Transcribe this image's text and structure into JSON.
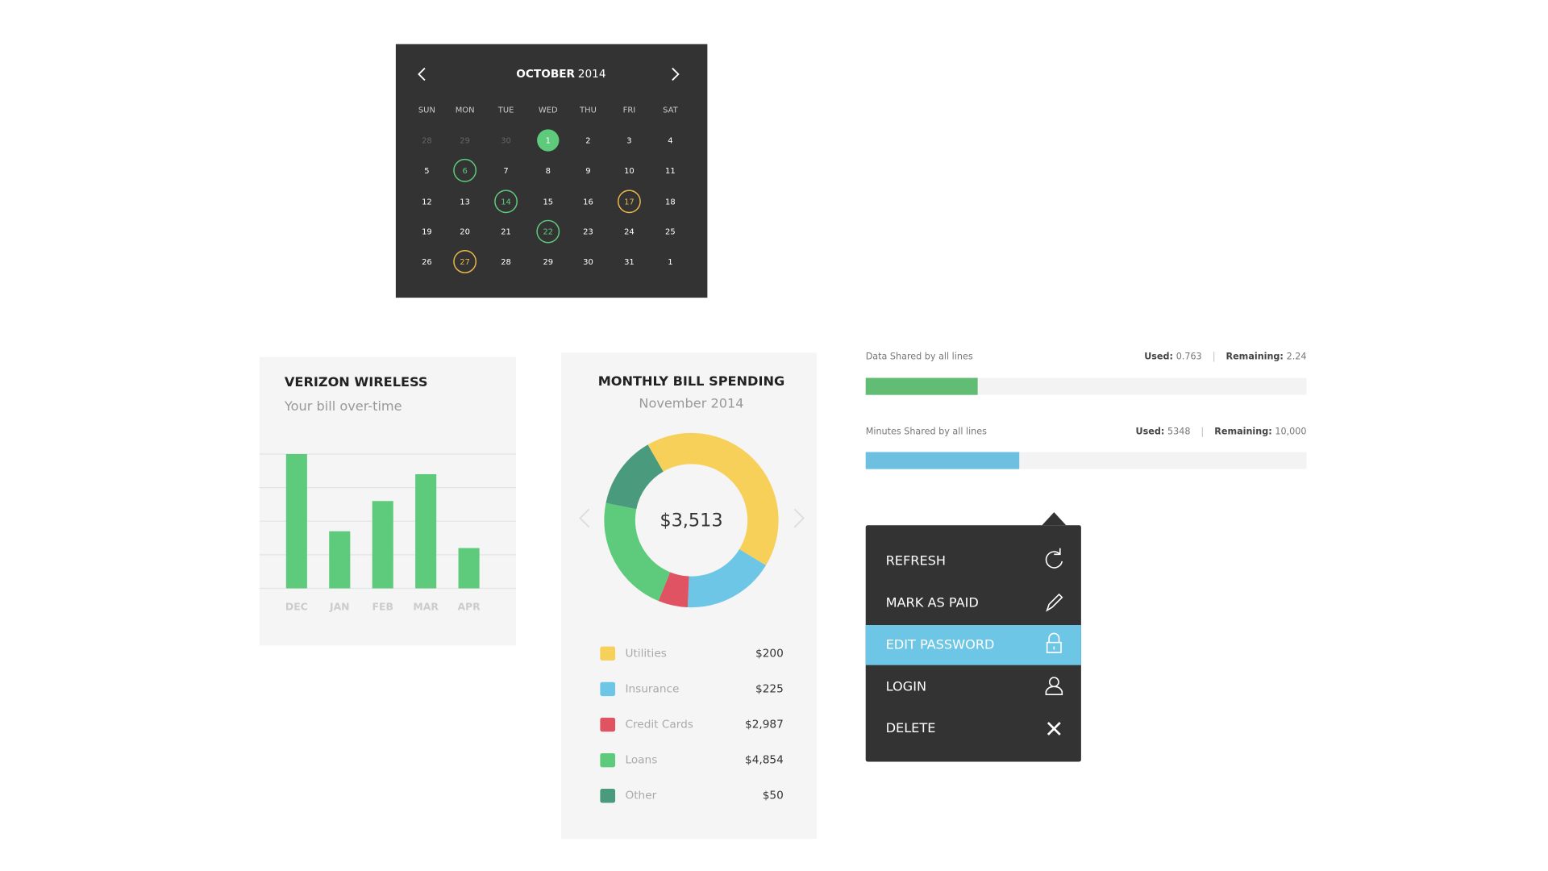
{
  "calendar": {
    "month": "OCTOBER",
    "year": "2014",
    "weekdays": [
      "SUN",
      "MON",
      "TUE",
      "WED",
      "THU",
      "FRI",
      "SAT"
    ],
    "days": [
      {
        "day": 28,
        "style": "muted"
      },
      {
        "day": 29,
        "style": "muted"
      },
      {
        "day": 30,
        "style": "muted"
      },
      {
        "day": 1,
        "style": "filled"
      },
      {
        "day": 2,
        "style": "plain"
      },
      {
        "day": 3,
        "style": "plain"
      },
      {
        "day": 4,
        "style": "plain"
      },
      {
        "day": 5,
        "style": "plain"
      },
      {
        "day": 6,
        "style": "ring-green"
      },
      {
        "day": 7,
        "style": "plain"
      },
      {
        "day": 8,
        "style": "plain"
      },
      {
        "day": 9,
        "style": "plain"
      },
      {
        "day": 10,
        "style": "plain"
      },
      {
        "day": 11,
        "style": "plain"
      },
      {
        "day": 12,
        "style": "plain"
      },
      {
        "day": 13,
        "style": "plain"
      },
      {
        "day": 14,
        "style": "ring-green"
      },
      {
        "day": 15,
        "style": "plain"
      },
      {
        "day": 16,
        "style": "plain"
      },
      {
        "day": 17,
        "style": "ring-yellow"
      },
      {
        "day": 18,
        "style": "plain"
      },
      {
        "day": 19,
        "style": "plain"
      },
      {
        "day": 20,
        "style": "plain"
      },
      {
        "day": 21,
        "style": "plain"
      },
      {
        "day": 22,
        "style": "ring-green"
      },
      {
        "day": 23,
        "style": "plain"
      },
      {
        "day": 24,
        "style": "plain"
      },
      {
        "day": 25,
        "style": "plain"
      },
      {
        "day": 26,
        "style": "plain"
      },
      {
        "day": 27,
        "style": "ring-yellow"
      },
      {
        "day": 28,
        "style": "plain"
      },
      {
        "day": 29,
        "style": "plain"
      },
      {
        "day": 30,
        "style": "plain"
      },
      {
        "day": 31,
        "style": "plain"
      },
      {
        "day": 1,
        "style": "plain"
      }
    ]
  },
  "chart_data": [
    {
      "type": "bar",
      "title": "VERIZON WIRELESS",
      "subtitle": "Your bill over-time",
      "categories": [
        "DEC",
        "JAN",
        "FEB",
        "MAR",
        "APR"
      ],
      "values": [
        4.0,
        1.7,
        2.6,
        3.4,
        1.2
      ],
      "color": "#5ecb7c",
      "ylim": [
        0,
        4
      ],
      "gridlines": [
        0,
        1,
        2,
        3,
        4
      ]
    },
    {
      "type": "pie",
      "title": "MONTHLY BILL SPENDING",
      "subtitle": "November 2014",
      "center_label": "$3,513",
      "categories": [
        "Utilities",
        "Insurance",
        "Credit Cards",
        "Loans",
        "Other"
      ],
      "values": [
        42,
        17,
        5.5,
        22,
        13.5
      ],
      "colors": [
        "#f7d05a",
        "#6ec6e6",
        "#e05363",
        "#5ecb7c",
        "#4a9a7e"
      ],
      "amounts": [
        "$200",
        "$225",
        "$2,987",
        "$4,854",
        "$50"
      ]
    }
  ],
  "usage": [
    {
      "title": "Data Shared by all lines",
      "used_label": "Used:",
      "used": 0.763,
      "remaining_label": "Remaining:",
      "remaining": 2.24,
      "color": "#62bd74"
    },
    {
      "title": "Minutes Shared by all lines",
      "used_label": "Used:",
      "used": 5348,
      "remaining_label": "Remaining:",
      "remaining": {
        "value": 10000,
        "label": "10,000"
      },
      "color": "#6ec0e0"
    }
  ],
  "menu": {
    "items": [
      "REFRESH",
      "MARK AS PAID",
      "EDIT PASSWORD",
      "LOGIN",
      "DELETE"
    ],
    "active": 2
  }
}
